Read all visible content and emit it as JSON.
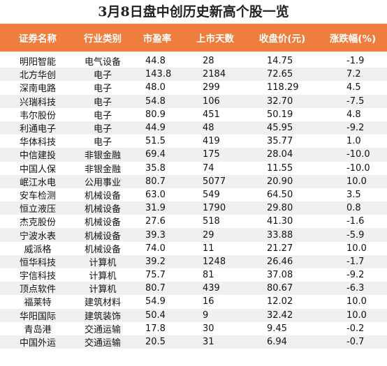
{
  "title": "3月8日盘中创历史新高个股一览",
  "table": {
    "header": [
      "证券名称",
      "行业类别",
      "市盈率",
      "上市天数",
      "收盘价(元)",
      "涨跌幅(%)"
    ],
    "rows": [
      [
        "明阳智能",
        "电气设备",
        "44.8",
        "28",
        "14.75",
        "-1.9"
      ],
      [
        "北方华创",
        "电子",
        "143.8",
        "2184",
        "72.65",
        "7.2"
      ],
      [
        "深南电路",
        "电子",
        "48.0",
        "299",
        "118.29",
        "4.5"
      ],
      [
        "兴瑞科技",
        "电子",
        "54.8",
        "106",
        "32.70",
        "-7.5"
      ],
      [
        "韦尔股份",
        "电子",
        "80.9",
        "451",
        "50.19",
        "4.8"
      ],
      [
        "利通电子",
        "电子",
        "44.9",
        "48",
        "45.95",
        "-9.2"
      ],
      [
        "华体科技",
        "电子",
        "51.5",
        "419",
        "35.77",
        "1.0"
      ],
      [
        "中信建投",
        "非银金融",
        "69.4",
        "175",
        "28.04",
        "-10.0"
      ],
      [
        "中国人保",
        "非银金融",
        "35.8",
        "74",
        "11.55",
        "-10.0"
      ],
      [
        "岷江水电",
        "公用事业",
        "80.7",
        "5077",
        "20.90",
        "10.0"
      ],
      [
        "安车检测",
        "机械设备",
        "63.0",
        "549",
        "64.50",
        "3.5"
      ],
      [
        "恒立液压",
        "机械设备",
        "31.9",
        "1790",
        "29.80",
        "0.8"
      ],
      [
        "杰克股份",
        "机械设备",
        "27.6",
        "518",
        "41.30",
        "-1.6"
      ],
      [
        "宁波水表",
        "机械设备",
        "39.3",
        "29",
        "33.88",
        "-5.9"
      ],
      [
        "威派格",
        "机械设备",
        "74.0",
        "11",
        "21.27",
        "10.0"
      ],
      [
        "恒华科技",
        "计算机",
        "39.2",
        "1248",
        "26.46",
        "-1.7"
      ],
      [
        "宇信科技",
        "计算机",
        "75.7",
        "81",
        "37.08",
        "-9.2"
      ],
      [
        "顶点软件",
        "计算机",
        "80.7",
        "439",
        "80.67",
        "-6.3"
      ],
      [
        "福莱特",
        "建筑材料",
        "54.9",
        "16",
        "12.02",
        "10.0"
      ],
      [
        "华阳国际",
        "建筑装饰",
        "50.4",
        "9",
        "32.42",
        "10.0"
      ],
      [
        "青岛港",
        "交通运输",
        "17.8",
        "30",
        "9.45",
        "-0.2"
      ],
      [
        "中国外运",
        "交通运输",
        "20.5",
        "31",
        "6.94",
        "-0.7"
      ]
    ]
  }
}
